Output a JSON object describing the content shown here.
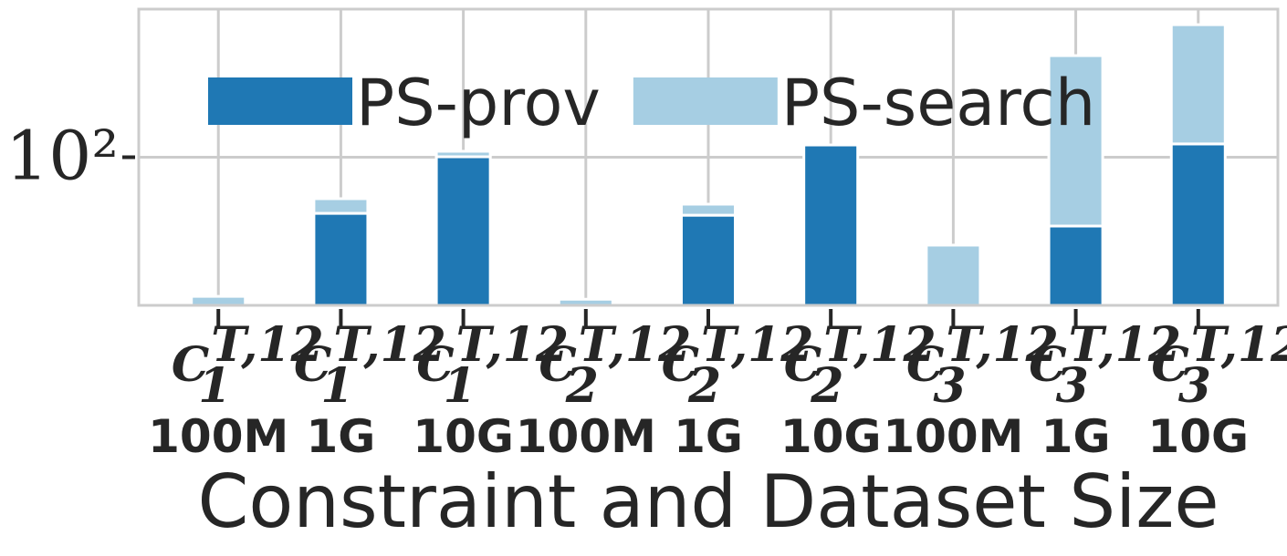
{
  "chart_data": {
    "type": "stacked-bar",
    "x_label": "Constraint and Dataset Size",
    "categories": [
      {
        "symbol": "C",
        "sub": "1",
        "sup": "T,12",
        "size": "100M"
      },
      {
        "symbol": "C",
        "sub": "1",
        "sup": "T,12",
        "size": "1G"
      },
      {
        "symbol": "C",
        "sub": "1",
        "sup": "T,12",
        "size": "10G"
      },
      {
        "symbol": "C",
        "sub": "2",
        "sup": "T,12",
        "size": "100M"
      },
      {
        "symbol": "C",
        "sub": "2",
        "sup": "T,12",
        "size": "1G"
      },
      {
        "symbol": "C",
        "sub": "2",
        "sup": "T,12",
        "size": "10G"
      },
      {
        "symbol": "C",
        "sub": "3",
        "sup": "T,12",
        "size": "100M"
      },
      {
        "symbol": "C",
        "sub": "3",
        "sup": "T,12",
        "size": "1G"
      },
      {
        "symbol": "C",
        "sub": "3",
        "sup": "T,12",
        "size": "10G"
      }
    ],
    "series": [
      {
        "name": "PS-prov",
        "color": "#1f78b4",
        "values": [
          0,
          41.8,
          100.7,
          0,
          40.6,
          121,
          0,
          34.3,
          123
        ]
      },
      {
        "name": "PS-search",
        "color": "#a6cee3",
        "values": [
          11.5,
          10.7,
          9,
          11,
          7.6,
          0,
          25.5,
          451,
          662
        ]
      }
    ],
    "log_scale": true,
    "ylim": [
      10,
      1000
    ],
    "yticks": [
      {
        "value": 100,
        "label": "10²"
      }
    ],
    "grid": true,
    "legend": "upper left"
  }
}
